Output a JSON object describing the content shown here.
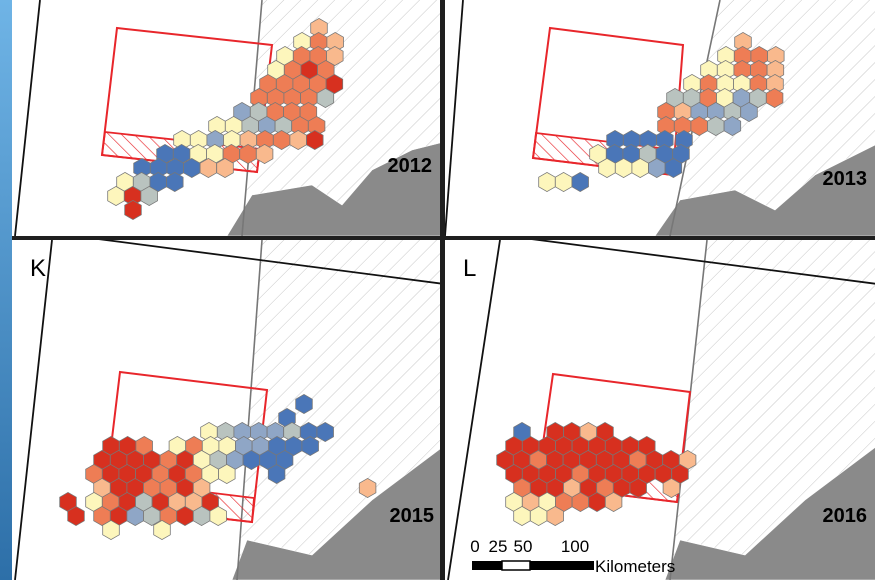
{
  "panels": [
    {
      "year": "2012"
    },
    {
      "year": "2013"
    },
    {
      "letter": "K",
      "year": "2015"
    },
    {
      "letter": "L",
      "year": "2016"
    }
  ],
  "scale_bar": {
    "ticks": [
      0,
      25,
      50,
      100
    ],
    "unit": "Kilometers"
  }
}
